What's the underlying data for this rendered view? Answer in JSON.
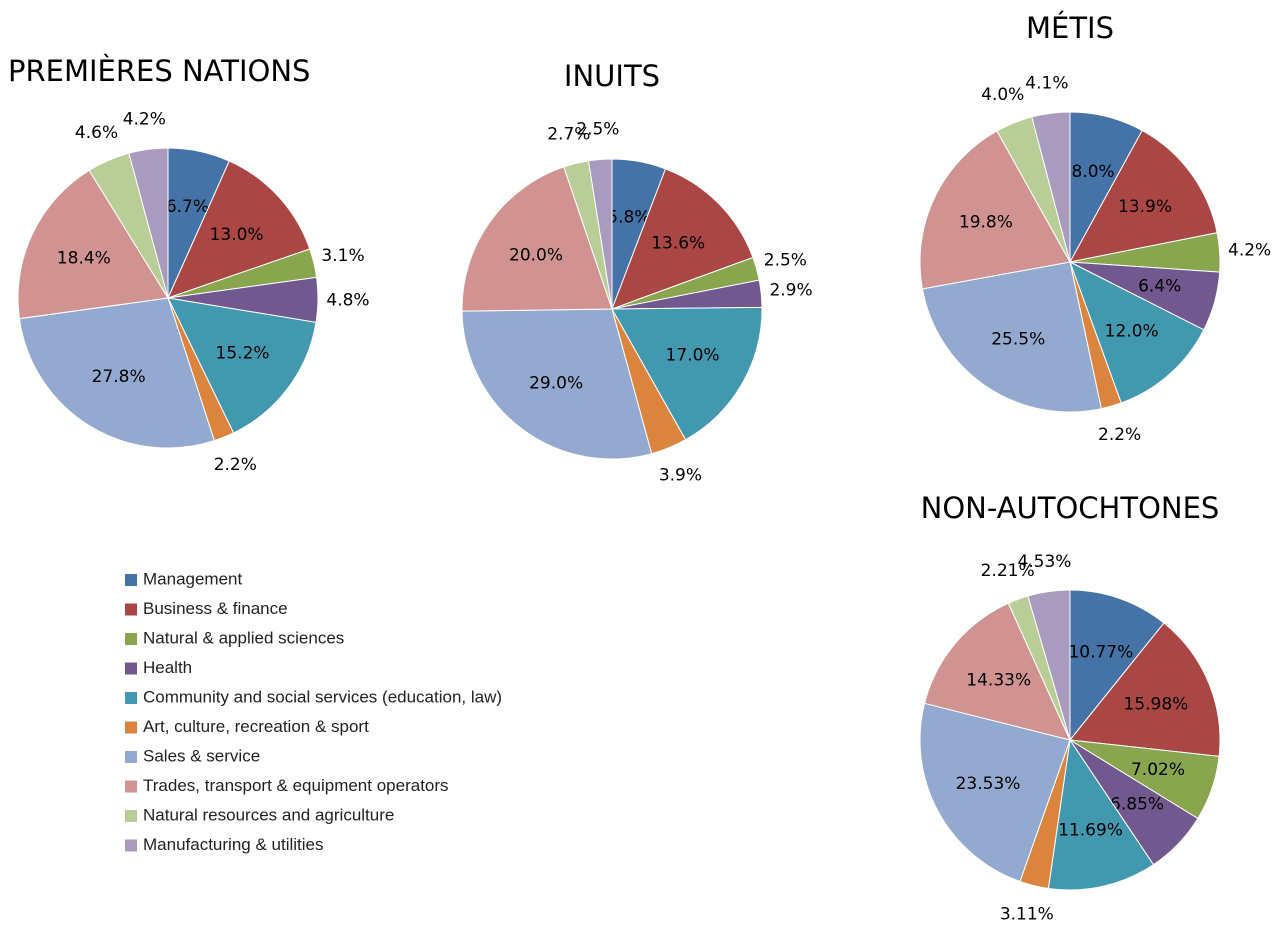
{
  "legend": {
    "categories": [
      "Management",
      "Business & finance",
      "Natural & applied sciences",
      " Health",
      "Community and social services (education, law)",
      "Art, culture, recreation & sport",
      "Sales & service",
      "Trades, transport & equipment operators",
      "Natural resources and agriculture",
      "Manufacturing & utilities"
    ],
    "colors": [
      "#4572a7",
      "#aa4643",
      "#89a54e",
      "#71588f",
      "#4198af",
      "#db843d",
      "#93a9cf",
      "#d19392",
      "#b9cd96",
      "#a99bbd"
    ]
  },
  "chart_data": [
    {
      "type": "pie",
      "title": "PREMIÈRES NATIONS",
      "values": [
        6.7,
        13.0,
        3.1,
        4.8,
        15.2,
        2.2,
        27.8,
        18.4,
        4.6,
        4.2
      ],
      "value_labels": [
        "6.7%",
        "13.0%",
        "3.1%",
        "4.8%",
        "15.2%",
        "2.2%",
        "27.8%",
        "18.4%",
        "4.6%",
        "4.2%"
      ]
    },
    {
      "type": "pie",
      "title": "INUITS",
      "values": [
        5.8,
        13.6,
        2.5,
        2.9,
        17.0,
        3.9,
        29.0,
        20.0,
        2.7,
        2.5
      ],
      "value_labels": [
        "5.8%",
        "13.6%",
        "2.5%",
        "2.9%",
        "17.0%",
        "3.9%",
        "29.0%",
        "20.0%",
        "2.7%",
        "2.5%"
      ]
    },
    {
      "type": "pie",
      "title": "MÉTIS",
      "values": [
        8.0,
        13.9,
        4.2,
        6.4,
        12.0,
        2.2,
        25.5,
        19.8,
        4.0,
        4.1
      ],
      "value_labels": [
        "8.0%",
        "13.9%",
        "4.2%",
        "6.4%",
        "12.0%",
        "2.2%",
        "25.5%",
        "19.8%",
        "4.0%",
        "4.1%"
      ]
    },
    {
      "type": "pie",
      "title": "NON-AUTOCHTONES",
      "values": [
        10.77,
        15.98,
        7.02,
        6.85,
        11.69,
        3.11,
        23.53,
        14.33,
        2.21,
        4.53
      ],
      "value_labels": [
        "10.77%",
        "15.98%",
        "7.02%",
        "6.85%",
        "11.69%",
        "3.11%",
        "23.53%",
        "14.33%",
        "2.21%",
        "4.53%"
      ]
    }
  ]
}
